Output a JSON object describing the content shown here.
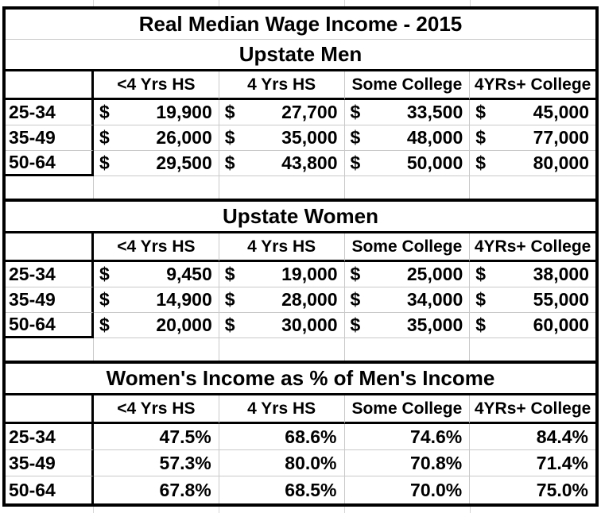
{
  "currency_symbol": "$",
  "table": {
    "title": "Real Median Wage Income - 2015",
    "columns": [
      "<4 Yrs HS",
      "4 Yrs HS",
      "Some College",
      "4YRs+ College"
    ],
    "row_labels": [
      "25-34",
      "35-49",
      "50-64"
    ],
    "sections": [
      {
        "title": "Upstate Men",
        "rows": [
          [
            "19,900",
            "27,700",
            "33,500",
            "45,000"
          ],
          [
            "26,000",
            "35,000",
            "48,000",
            "77,000"
          ],
          [
            "29,500",
            "43,800",
            "50,000",
            "80,000"
          ]
        ]
      },
      {
        "title": "Upstate Women",
        "rows": [
          [
            "9,450",
            "19,000",
            "25,000",
            "38,000"
          ],
          [
            "14,900",
            "28,000",
            "34,000",
            "55,000"
          ],
          [
            "20,000",
            "30,000",
            "35,000",
            "60,000"
          ]
        ]
      },
      {
        "title": "Women's Income as % of Men's Income",
        "rows": [
          [
            "47.5%",
            "68.6%",
            "74.6%",
            "84.4%"
          ],
          [
            "57.3%",
            "80.0%",
            "70.8%",
            "71.4%"
          ],
          [
            "67.8%",
            "68.5%",
            "70.0%",
            "75.0%"
          ]
        ]
      }
    ]
  }
}
